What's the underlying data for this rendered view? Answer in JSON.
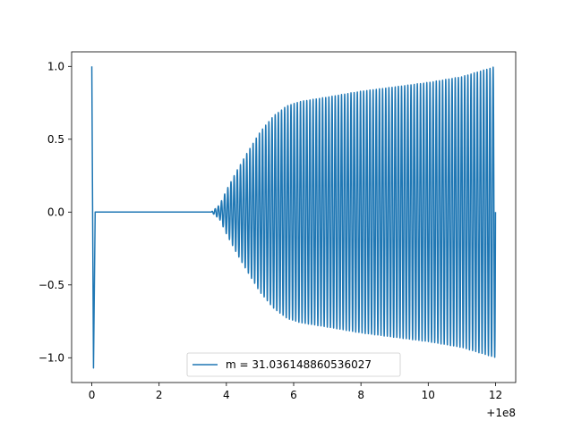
{
  "chart_data": {
    "type": "line",
    "title": "",
    "xlabel": "",
    "ylabel": "",
    "x_offset_label": "+1e8",
    "xlim": [
      -0.6,
      12.6
    ],
    "ylim": [
      -1.17,
      1.1
    ],
    "x_ticks": [
      0,
      2,
      4,
      6,
      8,
      10,
      12
    ],
    "x_tick_labels": [
      "0",
      "2",
      "4",
      "6",
      "8",
      "10",
      "12"
    ],
    "y_ticks": [
      -1.0,
      -0.5,
      0.0,
      0.5,
      1.0
    ],
    "y_tick_labels": [
      "−1.0",
      "−0.5",
      "0.0",
      "0.5",
      "1.0"
    ],
    "grid": false,
    "legend_position": "lower center",
    "series": [
      {
        "name": "m = 31.036148860536027",
        "color": "#1f77b4",
        "description_points": {
          "spike": [
            [
              0.0,
              1.0
            ],
            [
              0.05,
              -1.07
            ],
            [
              0.1,
              0.0
            ]
          ],
          "flat": [
            [
              0.1,
              0.0
            ],
            [
              3.55,
              0.0
            ]
          ],
          "envelope": [
            [
              3.55,
              0.0
            ],
            [
              3.8,
              0.05
            ],
            [
              4.0,
              0.15
            ],
            [
              4.3,
              0.28
            ],
            [
              4.6,
              0.4
            ],
            [
              5.0,
              0.55
            ],
            [
              5.4,
              0.66
            ],
            [
              5.8,
              0.73
            ],
            [
              6.2,
              0.76
            ],
            [
              7.0,
              0.79
            ],
            [
              8.0,
              0.83
            ],
            [
              9.0,
              0.86
            ],
            [
              10.0,
              0.89
            ],
            [
              11.0,
              0.93
            ],
            [
              12.0,
              1.0
            ]
          ],
          "cycles": 90
        }
      }
    ]
  }
}
